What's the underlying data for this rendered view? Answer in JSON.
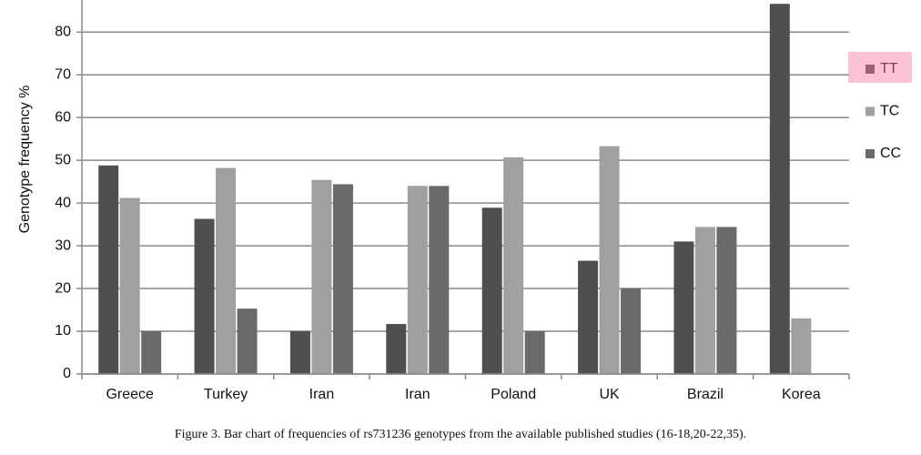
{
  "chart_data": {
    "type": "bar",
    "caption": "Figure 3. Bar chart of frequencies of rs731236 genotypes from the available published studies (16-18,20-22,35).",
    "y_label": "Genotype frequency %",
    "categories": [
      "Greece",
      "Turkey",
      "Iran",
      "Iran",
      "Poland",
      "UK",
      "Brazil",
      "Korea"
    ],
    "series": [
      {
        "name": "TT",
        "color": "#4f4f4f",
        "values": [
          48.8,
          36.3,
          10,
          11.7,
          38.9,
          26.5,
          31,
          86.6
        ]
      },
      {
        "name": "TC",
        "color": "#a0a0a0",
        "values": [
          41.2,
          48.2,
          45.4,
          44,
          50.7,
          53.3,
          34.4,
          13
        ]
      },
      {
        "name": "CC",
        "color": "#6a6a6a",
        "values": [
          10,
          15.3,
          44.4,
          44,
          10,
          20,
          34.4,
          0
        ]
      }
    ],
    "ylim": [
      0,
      87.5
    ],
    "yticks": [
      0,
      10,
      20,
      30,
      40,
      50,
      60,
      70,
      80
    ],
    "grid": true,
    "legend": "right"
  }
}
